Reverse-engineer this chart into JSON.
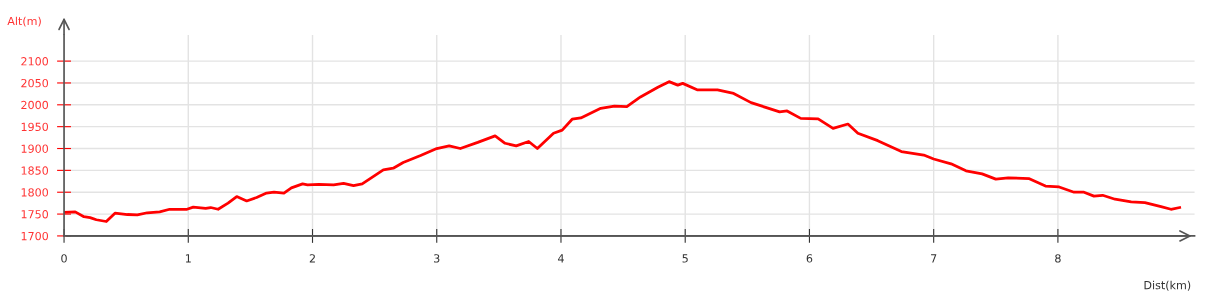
{
  "chart_data": {
    "type": "line",
    "xlabel": "Dist(km)",
    "ylabel": "Alt(m)",
    "xlim": [
      0,
      9.1
    ],
    "ylim": [
      1700,
      2160
    ],
    "xticks": [
      0,
      1,
      2,
      3,
      4,
      5,
      6,
      7,
      8
    ],
    "yticks": [
      1700,
      1750,
      1800,
      1850,
      1900,
      1950,
      2000,
      2050,
      2100
    ],
    "grid": true,
    "marker": "none",
    "line_style": "solid",
    "series": [
      {
        "color": "#ff0000",
        "x": [
          0.0,
          0.09,
          0.16,
          0.21,
          0.26,
          0.34,
          0.41,
          0.51,
          0.59,
          0.67,
          0.77,
          0.85,
          0.99,
          1.04,
          1.14,
          1.18,
          1.24,
          1.32,
          1.39,
          1.47,
          1.55,
          1.63,
          1.69,
          1.77,
          1.83,
          1.92,
          1.96,
          2.05,
          2.17,
          2.25,
          2.33,
          2.4,
          2.57,
          2.65,
          2.73,
          2.87,
          3.0,
          3.1,
          3.19,
          3.33,
          3.47,
          3.55,
          3.64,
          3.74,
          3.81,
          3.94,
          4.01,
          4.09,
          4.16,
          4.32,
          4.43,
          4.53,
          4.64,
          4.78,
          4.87,
          4.94,
          4.98,
          5.1,
          5.26,
          5.39,
          5.53,
          5.66,
          5.76,
          5.82,
          5.93,
          6.07,
          6.19,
          6.31,
          6.39,
          6.55,
          6.74,
          6.92,
          7.0,
          7.14,
          7.26,
          7.39,
          7.5,
          7.6,
          7.77,
          7.9,
          8.01,
          8.13,
          8.21,
          8.29,
          8.36,
          8.46,
          8.59,
          8.7,
          8.83,
          8.91,
          8.98
        ],
        "values": [
          1754,
          1755,
          1744,
          1742,
          1737,
          1733,
          1752,
          1749,
          1748,
          1753,
          1755,
          1761,
          1761,
          1766,
          1763,
          1765,
          1761,
          1775,
          1790,
          1780,
          1788,
          1798,
          1800,
          1798,
          1810,
          1819,
          1817,
          1818,
          1817,
          1820,
          1815,
          1819,
          1851,
          1855,
          1868,
          1884,
          1900,
          1906,
          1900,
          1914,
          1929,
          1912,
          1906,
          1916,
          1900,
          1935,
          1942,
          1967,
          1970,
          1992,
          1997,
          1996,
          2018,
          2040,
          2053,
          2045,
          2049,
          2034,
          2034,
          2026,
          2005,
          1993,
          1984,
          1986,
          1969,
          1968,
          1946,
          1956,
          1935,
          1918,
          1893,
          1885,
          1876,
          1865,
          1849,
          1842,
          1830,
          1833,
          1831,
          1814,
          1812,
          1800,
          1800,
          1791,
          1793,
          1784,
          1778,
          1776,
          1767,
          1761,
          1765
        ]
      }
    ]
  }
}
